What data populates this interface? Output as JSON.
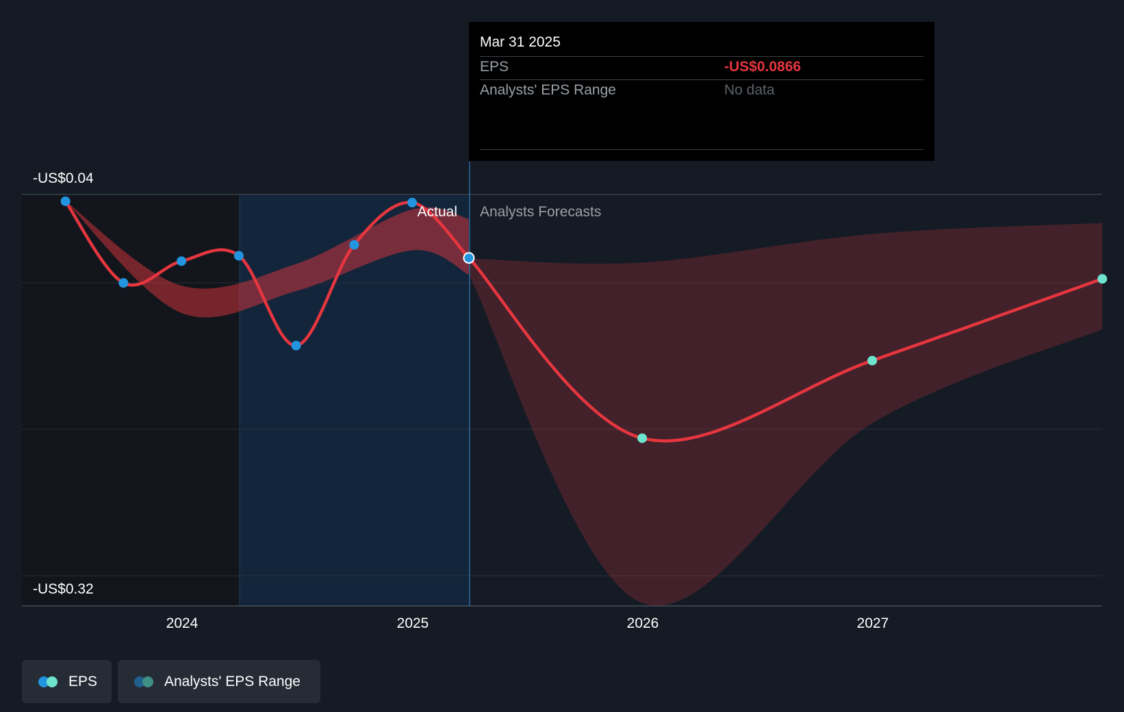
{
  "chart_data": {
    "type": "line",
    "y_tick_labels": [
      "-US$0.04",
      "-US$0.32"
    ],
    "ylim": [
      -0.32,
      -0.04
    ],
    "x_tick_labels": [
      "2024",
      "2025",
      "2026",
      "2027"
    ],
    "region_labels": {
      "actual": "Actual",
      "forecast": "Analysts Forecasts"
    },
    "series": [
      {
        "name": "EPS",
        "points": [
          {
            "x": "2023-06-30",
            "y": -0.045
          },
          {
            "x": "2023-09-30",
            "y": -0.105
          },
          {
            "x": "2023-12-31",
            "y": -0.089
          },
          {
            "x": "2024-03-31",
            "y": -0.085
          },
          {
            "x": "2024-06-30",
            "y": -0.151
          },
          {
            "x": "2024-09-30",
            "y": -0.077
          },
          {
            "x": "2024-12-31",
            "y": -0.046
          },
          {
            "x": "2025-03-31",
            "y": -0.0866
          }
        ]
      },
      {
        "name": "EPS Forecast",
        "points": [
          {
            "x": "2025-03-31",
            "y": -0.0866
          },
          {
            "x": "2025-12-31",
            "y": -0.219
          },
          {
            "x": "2026-12-31",
            "y": -0.162
          },
          {
            "x": "2027-12-31",
            "y": -0.102
          }
        ]
      }
    ],
    "range": {
      "name": "Analysts' EPS Range",
      "upper": [
        {
          "x": "2023-06-30",
          "y": -0.045
        },
        {
          "x": "2023-12-31",
          "y": -0.107
        },
        {
          "x": "2024-06-30",
          "y": -0.091
        },
        {
          "x": "2024-12-31",
          "y": -0.051
        },
        {
          "x": "2025-03-31",
          "y": -0.058
        },
        {
          "x": "2025-03-31",
          "y": -0.087
        },
        {
          "x": "2025-12-31",
          "y": -0.09
        },
        {
          "x": "2026-12-31",
          "y": -0.069
        },
        {
          "x": "2027-12-31",
          "y": -0.061
        }
      ],
      "lower": [
        {
          "x": "2023-06-30",
          "y": -0.045
        },
        {
          "x": "2023-12-31",
          "y": -0.127
        },
        {
          "x": "2024-06-30",
          "y": -0.111
        },
        {
          "x": "2024-12-31",
          "y": -0.081
        },
        {
          "x": "2025-03-31",
          "y": -0.099
        },
        {
          "x": "2025-12-31",
          "y": -0.34
        },
        {
          "x": "2026-12-31",
          "y": -0.208
        },
        {
          "x": "2027-12-31",
          "y": -0.139
        }
      ]
    },
    "colors": {
      "line": "#e5363f",
      "actual_point": "#2394df",
      "forecast_point": "#6ee4cf",
      "range_fill": "#e5363f"
    }
  },
  "tooltip": {
    "date": "Mar 31 2025",
    "eps_label": "EPS",
    "eps_value": "-US$0.0866",
    "range_label": "Analysts' EPS Range",
    "range_value": "No data"
  },
  "legend": {
    "eps_label": "EPS",
    "range_label": "Analysts' EPS Range",
    "eps_colors": [
      "#2394df",
      "#6ee4cf"
    ],
    "range_colors": [
      "#1f5f8b",
      "#3e8f86"
    ]
  }
}
